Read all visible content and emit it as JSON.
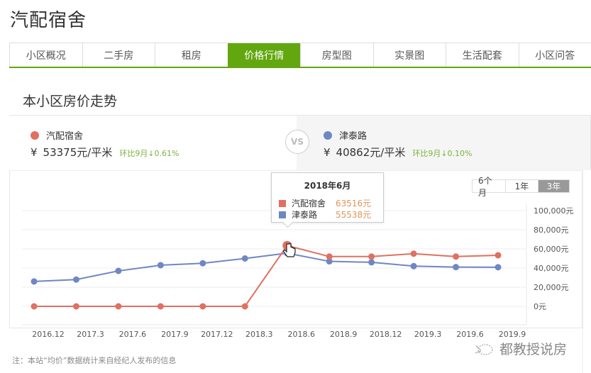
{
  "page": {
    "title": "汽配宿舍"
  },
  "tabs": [
    {
      "label": "小区概况",
      "active": false
    },
    {
      "label": "二手房",
      "active": false
    },
    {
      "label": "租房",
      "active": false
    },
    {
      "label": "价格行情",
      "active": true
    },
    {
      "label": "房型图",
      "active": false
    },
    {
      "label": "实景图",
      "active": false
    },
    {
      "label": "生活配套",
      "active": false
    },
    {
      "label": "小区问答",
      "active": false
    }
  ],
  "section": {
    "title": "本小区房价走势"
  },
  "compare": {
    "left": {
      "name": "汽配宿舍",
      "currency": "¥",
      "price": "53375元/平米",
      "change": "环比9月↓0.61%",
      "color": "#e07060"
    },
    "vs_label": "VS",
    "right": {
      "name": "津泰路",
      "currency": "¥",
      "price": "40862元/平米",
      "change": "环比9月↓0.10%",
      "color": "#6f87c3"
    }
  },
  "range_toggle": [
    {
      "label": "6个月",
      "active": false
    },
    {
      "label": "1年",
      "active": false
    },
    {
      "label": "3年",
      "active": true
    }
  ],
  "tooltip": {
    "title": "2018年6月",
    "rows": [
      {
        "name": "汽配宿舍",
        "value": "63516元",
        "color": "#e07060"
      },
      {
        "name": "津泰路",
        "value": "55538元",
        "color": "#6f87c3"
      }
    ]
  },
  "chart_data": {
    "type": "line",
    "title": "本小区房价走势",
    "xlabel": "",
    "ylabel": "",
    "categories": [
      "2016.12",
      "2017.3",
      "2017.6",
      "2017.9",
      "2017.12",
      "2018.3",
      "2018.6",
      "2018.9",
      "2018.12",
      "2019.3",
      "2019.6",
      "2019.9"
    ],
    "series": [
      {
        "name": "汽配宿舍",
        "color": "#e07060",
        "values": [
          0,
          0,
          0,
          0,
          0,
          0,
          63516,
          52000,
          52000,
          55000,
          52000,
          53375
        ]
      },
      {
        "name": "津泰路",
        "color": "#6f87c3",
        "values": [
          26000,
          28000,
          37000,
          43000,
          45000,
          50000,
          55538,
          47000,
          46000,
          42000,
          41000,
          40862
        ]
      }
    ],
    "y_ticks": [
      "100,000元",
      "80,000元",
      "60,000元",
      "40,000元",
      "20,000元",
      "0元"
    ],
    "ylim": [
      0,
      100000
    ],
    "y_axis_position": "right",
    "grid": true,
    "highlighted_point": {
      "category": "2018.6",
      "series": "汽配宿舍"
    }
  },
  "footnote": "注：本站“均价”数据统计来自经纪人发布的信息",
  "watermark": "都教授说房"
}
